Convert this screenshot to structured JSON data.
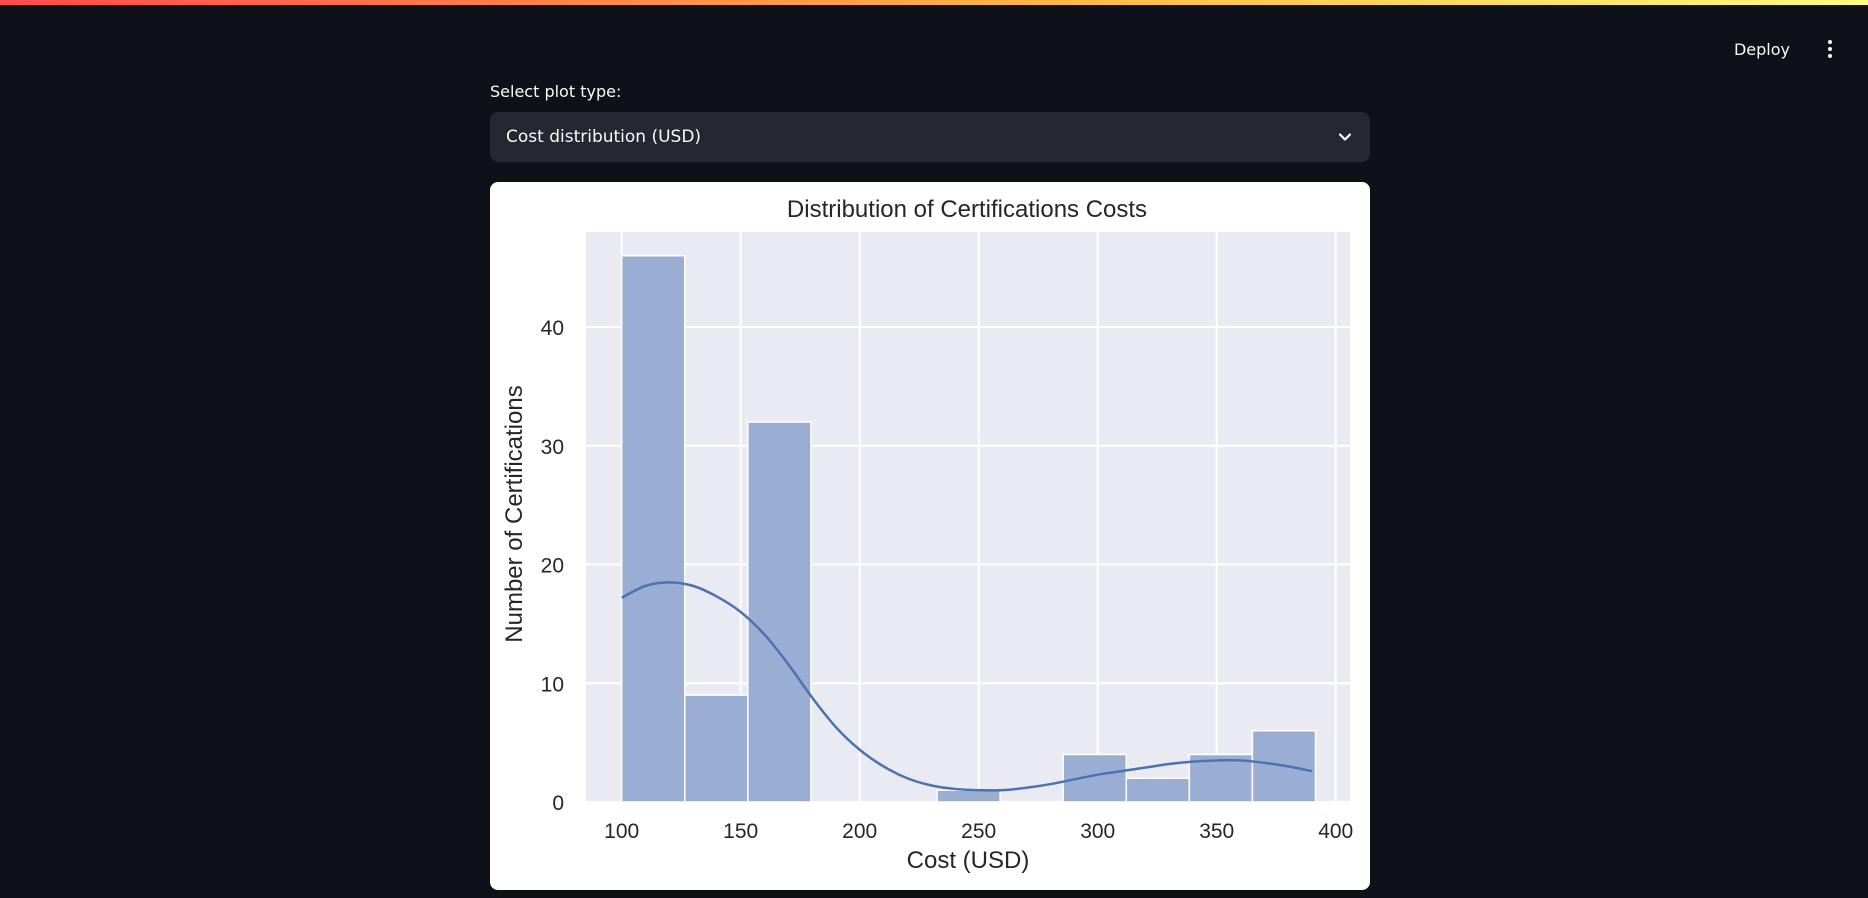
{
  "header": {
    "deploy_label": "Deploy",
    "menu_icon": "kebab-menu-icon"
  },
  "controls": {
    "select_label": "Select plot type:",
    "selected_value": "Cost distribution (USD)"
  },
  "colors": {
    "bar_fill": "#9aaed3",
    "kde_line": "#4c72b0",
    "plot_bg": "#eaeaf2",
    "accent_gradient_start": "#ff4b4b",
    "accent_gradient_end": "#fffd80"
  },
  "chart_data": {
    "type": "bar",
    "title": "Distribution of Certifications Costs",
    "xlabel": "Cost (USD)",
    "ylabel": "Number of Certifications",
    "xlim": [
      85,
      406
    ],
    "ylim": [
      0,
      48
    ],
    "xticks": [
      100,
      150,
      200,
      250,
      300,
      350,
      400
    ],
    "yticks": [
      0,
      10,
      20,
      30,
      40
    ],
    "grid": true,
    "bins": [
      {
        "x0": 100,
        "x1": 126.5,
        "count": 46
      },
      {
        "x0": 126.5,
        "x1": 153,
        "count": 9
      },
      {
        "x0": 153,
        "x1": 179.5,
        "count": 32
      },
      {
        "x0": 179.5,
        "x1": 206,
        "count": 0
      },
      {
        "x0": 206,
        "x1": 232.5,
        "count": 0
      },
      {
        "x0": 232.5,
        "x1": 259,
        "count": 1
      },
      {
        "x0": 259,
        "x1": 285.5,
        "count": 0
      },
      {
        "x0": 285.5,
        "x1": 312,
        "count": 4
      },
      {
        "x0": 312,
        "x1": 338.5,
        "count": 2
      },
      {
        "x0": 338.5,
        "x1": 365,
        "count": 4
      },
      {
        "x0": 365,
        "x1": 391.5,
        "count": 6
      }
    ],
    "kde": {
      "x": [
        100,
        110,
        120,
        130,
        140,
        150,
        160,
        170,
        180,
        190,
        200,
        210,
        220,
        230,
        240,
        250,
        260,
        270,
        280,
        290,
        300,
        310,
        320,
        330,
        340,
        350,
        360,
        370,
        380,
        390
      ],
      "y": [
        17.2,
        18.2,
        18.5,
        18.2,
        17.3,
        16.0,
        14.1,
        11.6,
        8.8,
        6.3,
        4.4,
        3.0,
        2.0,
        1.4,
        1.1,
        1.0,
        1.0,
        1.2,
        1.5,
        1.9,
        2.3,
        2.6,
        2.9,
        3.2,
        3.4,
        3.5,
        3.5,
        3.3,
        3.0,
        2.6
      ]
    }
  }
}
